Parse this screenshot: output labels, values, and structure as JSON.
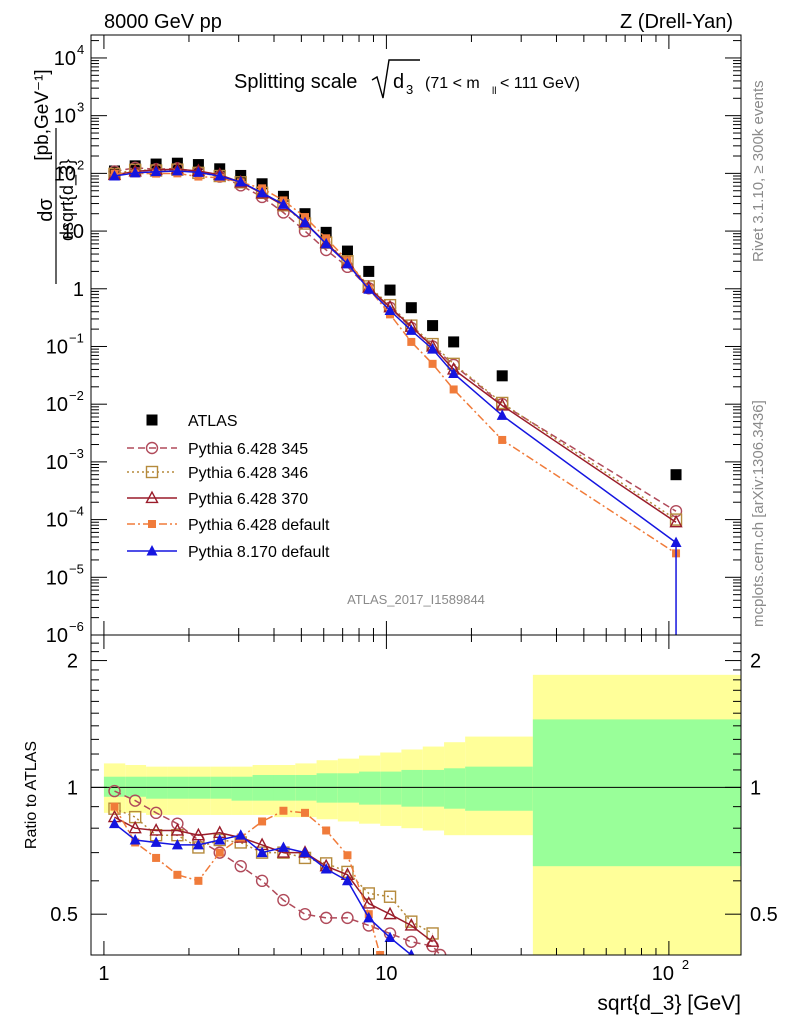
{
  "header": {
    "energy": "8000 GeV pp",
    "process": "Z (Drell-Yan)",
    "title_main": "Splitting scale",
    "title_sym": "d",
    "title_sub": "3",
    "title_range_a": "(71 < m",
    "title_range_sub": "ll",
    "title_range_b": " < 111 GeV)",
    "rivet": "Rivet 3.1.10, ≥ 300k events",
    "mcplots": "mcplots.cern.ch [arXiv:1306.3436]",
    "analysis": "ATLAS_2017_I1589844"
  },
  "chart_data": [
    {
      "type": "scatter",
      "panel": "main",
      "title": "Splitting scale √d3 (71 < m_ll < 111 GeV)",
      "xlabel": "sqrt{d_3} [GeV]",
      "ylabel": "dσ/dsqrt{d_3} [pb,GeV^-1]",
      "xscale": "log",
      "yscale": "log",
      "xlim": [
        0.9,
        180
      ],
      "ylim": [
        1e-06,
        25000
      ],
      "x_ticks": [
        "1",
        "10",
        "10^2"
      ],
      "y_ticks": [
        "10^-6",
        "10^-5",
        "10^-4",
        "10^-3",
        "10^-2",
        "10^-1",
        "1",
        "10",
        "10^2",
        "10^3",
        "10^4"
      ],
      "legend_position": "lower-left",
      "series": [
        {
          "name": "ATLAS",
          "color": "#000000",
          "marker": "square-filled",
          "line": "none",
          "x": [
            1.09,
            1.29,
            1.53,
            1.82,
            2.16,
            2.57,
            3.05,
            3.63,
            4.32,
            5.15,
            6.12,
            7.28,
            8.66,
            10.3,
            12.25,
            14.57,
            17.3,
            25.7,
            106
          ],
          "y": [
            110,
            135,
            145,
            150,
            142,
            120,
            92,
            66,
            40,
            20,
            9.5,
            4.5,
            2.0,
            0.95,
            0.47,
            0.23,
            0.12,
            0.031,
            0.0006
          ]
        },
        {
          "name": "Pythia 6.428 345",
          "color": "#b04a5a",
          "marker": "circle-open",
          "line": "dashed",
          "x": [
            1.09,
            1.29,
            1.53,
            1.82,
            2.16,
            2.57,
            3.05,
            3.63,
            4.32,
            5.15,
            6.12,
            7.28,
            8.66,
            10.3,
            12.25,
            14.57,
            17.3,
            25.7,
            106
          ],
          "y": [
            108,
            125,
            118,
            122,
            105,
            88,
            62,
            39,
            21,
            10,
            4.7,
            2.4,
            1.02,
            0.47,
            0.21,
            0.1,
            0.048,
            0.01,
            0.00014
          ]
        },
        {
          "name": "Pythia 6.428 346",
          "color": "#b58a3c",
          "marker": "square-open",
          "line": "dotted",
          "x": [
            1.09,
            1.29,
            1.53,
            1.82,
            2.16,
            2.57,
            3.05,
            3.63,
            4.32,
            5.15,
            6.12,
            7.28,
            8.66,
            10.3,
            12.25,
            14.57,
            17.3,
            25.7,
            106
          ],
          "y": [
            98,
            115,
            112,
            116,
            102,
            90,
            70,
            46,
            28,
            13.5,
            6.3,
            3.0,
            1.1,
            0.52,
            0.23,
            0.11,
            0.05,
            0.0105,
            0.0001
          ]
        },
        {
          "name": "Pythia 6.428 370",
          "color": "#9a1c2a",
          "marker": "triangle-open",
          "line": "solid",
          "x": [
            1.09,
            1.29,
            1.53,
            1.82,
            2.16,
            2.57,
            3.05,
            3.63,
            4.32,
            5.15,
            6.12,
            7.28,
            8.66,
            10.3,
            12.25,
            14.57,
            17.3,
            25.7,
            106
          ],
          "y": [
            94,
            108,
            115,
            118,
            110,
            95,
            70,
            45,
            28,
            14,
            6.2,
            2.8,
            1.05,
            0.48,
            0.22,
            0.1,
            0.04,
            0.0095,
            9e-05
          ]
        },
        {
          "name": "Pythia 6.428 default",
          "color": "#f07b3a",
          "marker": "square-filled",
          "line": "dashdot",
          "x": [
            1.09,
            1.29,
            1.53,
            1.82,
            2.16,
            2.57,
            3.05,
            3.63,
            4.32,
            5.15,
            6.12,
            7.28,
            8.66,
            10.3,
            12.25,
            14.57,
            17.3,
            25.7,
            106
          ],
          "y": [
            99,
            100,
            99,
            100,
            88,
            84,
            70,
            55,
            34,
            17.5,
            7.5,
            3.1,
            1.0,
            0.36,
            0.12,
            0.05,
            0.018,
            0.0024,
            2.6e-05
          ]
        },
        {
          "name": "Pythia 8.170 default",
          "color": "#1515e0",
          "marker": "triangle-filled",
          "line": "solid",
          "x": [
            1.09,
            1.29,
            1.53,
            1.82,
            2.16,
            2.57,
            3.05,
            3.63,
            4.32,
            5.15,
            6.12,
            7.28,
            8.66,
            10.3,
            12.25,
            14.57,
            17.3,
            25.7,
            106
          ],
          "y": [
            90,
            102,
            107,
            110,
            104,
            90,
            71,
            46,
            29,
            14,
            6.0,
            2.7,
            0.98,
            0.42,
            0.19,
            0.09,
            0.034,
            0.0064,
            4e-05
          ]
        }
      ]
    },
    {
      "type": "line",
      "panel": "ratio",
      "ylabel": "Ratio to ATLAS",
      "xlabel": "sqrt{d_3} [GeV]",
      "xscale": "log",
      "xlim": [
        0.9,
        180
      ],
      "ylim": [
        0.4,
        2.3
      ],
      "y_ticks": [
        "0.5",
        "1",
        "2"
      ],
      "bands": {
        "edges": [
          1.0,
          1.19,
          1.41,
          1.68,
          2.0,
          2.38,
          2.83,
          3.36,
          4.0,
          4.76,
          5.66,
          6.73,
          8.0,
          9.51,
          11.3,
          13.45,
          16.0,
          19.0,
          33.0,
          180
        ],
        "stat_sys_lo": [
          0.87,
          0.87,
          0.86,
          0.86,
          0.86,
          0.86,
          0.86,
          0.86,
          0.85,
          0.85,
          0.84,
          0.83,
          0.82,
          0.81,
          0.8,
          0.79,
          0.77,
          0.77,
          0.35
        ],
        "stat_sys_hi": [
          1.14,
          1.13,
          1.12,
          1.12,
          1.12,
          1.12,
          1.12,
          1.13,
          1.13,
          1.14,
          1.16,
          1.17,
          1.19,
          1.21,
          1.23,
          1.25,
          1.28,
          1.32,
          1.85
        ],
        "stat_lo": [
          0.95,
          0.95,
          0.94,
          0.94,
          0.94,
          0.94,
          0.93,
          0.93,
          0.93,
          0.93,
          0.92,
          0.92,
          0.91,
          0.91,
          0.9,
          0.9,
          0.89,
          0.88,
          0.65
        ],
        "stat_hi": [
          1.06,
          1.06,
          1.06,
          1.06,
          1.06,
          1.06,
          1.06,
          1.07,
          1.07,
          1.07,
          1.08,
          1.08,
          1.09,
          1.09,
          1.1,
          1.1,
          1.11,
          1.12,
          1.45
        ]
      },
      "series": [
        {
          "name": "Pythia 6.428 345",
          "x": [
            1.09,
            1.29,
            1.53,
            1.82,
            2.16,
            2.57,
            3.05,
            3.63,
            4.32,
            5.15,
            6.12,
            7.28,
            8.66,
            10.3,
            12.25,
            14.57,
            15.5
          ],
          "y": [
            0.98,
            0.93,
            0.87,
            0.82,
            0.75,
            0.7,
            0.65,
            0.6,
            0.54,
            0.5,
            0.49,
            0.49,
            0.47,
            0.45,
            0.43,
            0.42,
            0.4
          ]
        },
        {
          "name": "Pythia 6.428 346",
          "x": [
            1.09,
            1.29,
            1.53,
            1.82,
            2.16,
            2.57,
            3.05,
            3.63,
            4.32,
            5.15,
            6.12,
            7.28,
            8.66,
            10.3,
            12.25,
            14.57
          ],
          "y": [
            0.89,
            0.85,
            0.77,
            0.77,
            0.72,
            0.75,
            0.74,
            0.7,
            0.7,
            0.68,
            0.66,
            0.63,
            0.56,
            0.55,
            0.48,
            0.45
          ]
        },
        {
          "name": "Pythia 6.428 370",
          "x": [
            1.09,
            1.29,
            1.53,
            1.82,
            2.16,
            2.57,
            3.05,
            3.63,
            4.32,
            5.15,
            6.12,
            7.28,
            8.66,
            10.3,
            12.25,
            14.57
          ],
          "y": [
            0.85,
            0.8,
            0.79,
            0.79,
            0.77,
            0.78,
            0.76,
            0.73,
            0.7,
            0.7,
            0.65,
            0.62,
            0.53,
            0.5,
            0.47,
            0.43
          ]
        },
        {
          "name": "Pythia 6.428 default",
          "x": [
            1.09,
            1.29,
            1.53,
            1.82,
            2.16,
            2.57,
            3.05,
            3.63,
            4.32,
            5.15,
            6.12,
            7.28,
            8.66,
            9.5
          ],
          "y": [
            0.9,
            0.74,
            0.68,
            0.62,
            0.6,
            0.7,
            0.76,
            0.83,
            0.88,
            0.87,
            0.79,
            0.69,
            0.5,
            0.4
          ]
        },
        {
          "name": "Pythia 8.170 default",
          "x": [
            1.09,
            1.29,
            1.53,
            1.82,
            2.16,
            2.57,
            3.05,
            3.63,
            4.32,
            5.15,
            6.12,
            7.28,
            8.66,
            10.3,
            12.25
          ],
          "y": [
            0.82,
            0.75,
            0.74,
            0.73,
            0.73,
            0.75,
            0.77,
            0.7,
            0.72,
            0.7,
            0.64,
            0.6,
            0.49,
            0.44,
            0.4
          ]
        }
      ]
    }
  ]
}
